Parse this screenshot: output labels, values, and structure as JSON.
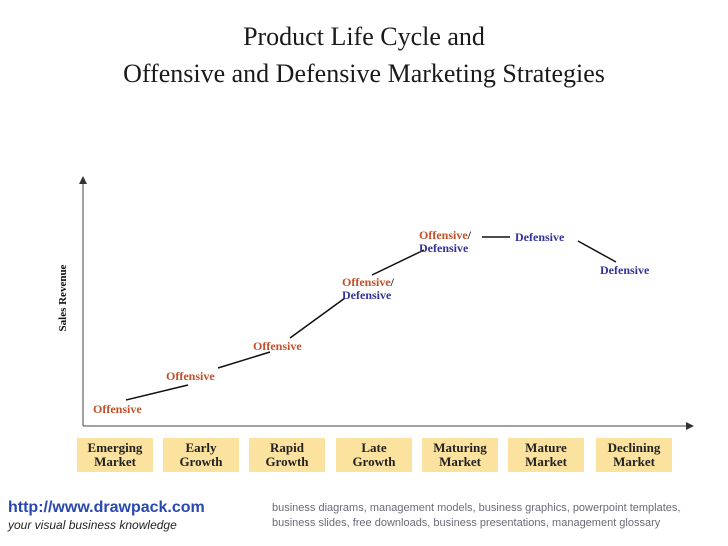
{
  "title": {
    "line1": "Product Life Cycle and",
    "line2": "Offensive and Defensive Marketing Strategies"
  },
  "axis": {
    "ylabel": "Sales Revenue"
  },
  "strategy_labels": {
    "emerging": "Offensive",
    "early": "Offensive",
    "rapid": "Offensive",
    "late_off": "Offensive",
    "late_slash": "/",
    "late_def": "Defensive",
    "maturing_off": "Offensive",
    "maturing_slash": "/",
    "maturing_def": "Defensive",
    "mature": "Defensive",
    "declining": "Defensive"
  },
  "stages": [
    {
      "line1": "Emerging",
      "line2": "Market"
    },
    {
      "line1": "Early",
      "line2": "Growth"
    },
    {
      "line1": "Rapid",
      "line2": "Growth"
    },
    {
      "line1": "Late",
      "line2": "Growth"
    },
    {
      "line1": "Maturing",
      "line2": "Market"
    },
    {
      "line1": "Mature",
      "line2": "Market"
    },
    {
      "line1": "Declining",
      "line2": "Market"
    }
  ],
  "footer": {
    "url": "http://www.drawpack.com",
    "tagline": "your visual business knowledge",
    "description": "business diagrams, management models, business graphics, powerpoint templates, business slides, free downloads, business presentations, management glossary"
  },
  "colors": {
    "offensive": "#c0502a",
    "defensive": "#33339a",
    "stage_fill": "#fbe29e",
    "footer_link": "#2848b0"
  }
}
